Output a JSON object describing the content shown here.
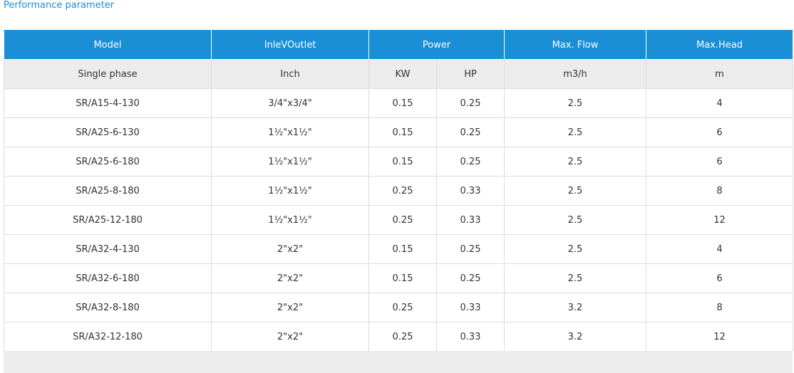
{
  "title": "Performance parameter",
  "table": {
    "header": [
      "Model",
      "InleVOutlet",
      "Power",
      "Max. Flow",
      "Max.Head"
    ],
    "subheader": [
      "Single phase",
      "Inch",
      "KW",
      "HP",
      "m3/h",
      "m"
    ],
    "rows": [
      [
        "SR/A15-4-130",
        "3/4\"x3/4\"",
        "0.15",
        "0.25",
        "2.5",
        "4"
      ],
      [
        "SR/A25-6-130",
        "1½\"x1½\"",
        "0.15",
        "0.25",
        "2.5",
        "6"
      ],
      [
        "SR/A25-6-180",
        "1½\"x1½\"",
        "0.15",
        "0.25",
        "2.5",
        "6"
      ],
      [
        "SR/A25-8-180",
        "1½\"x1½\"",
        "0.25",
        "0.33",
        "2.5",
        "8"
      ],
      [
        "SR/A25-12-180",
        "1½\"x1½\"",
        "0.25",
        "0.33",
        "2.5",
        "12"
      ],
      [
        "SR/A32-4-130",
        "2\"x2\"",
        "0.15",
        "0.25",
        "2.5",
        "4"
      ],
      [
        "SR/A32-6-180",
        "2\"x2\"",
        "0.15",
        "0.25",
        "2.5",
        "6"
      ],
      [
        "SR/A32-8-180",
        "2\"x2\"",
        "0.25",
        "0.33",
        "3.2",
        "8"
      ],
      [
        "SR/A32-12-180",
        "2\"x2\"",
        "0.25",
        "0.33",
        "3.2",
        "12"
      ]
    ]
  }
}
